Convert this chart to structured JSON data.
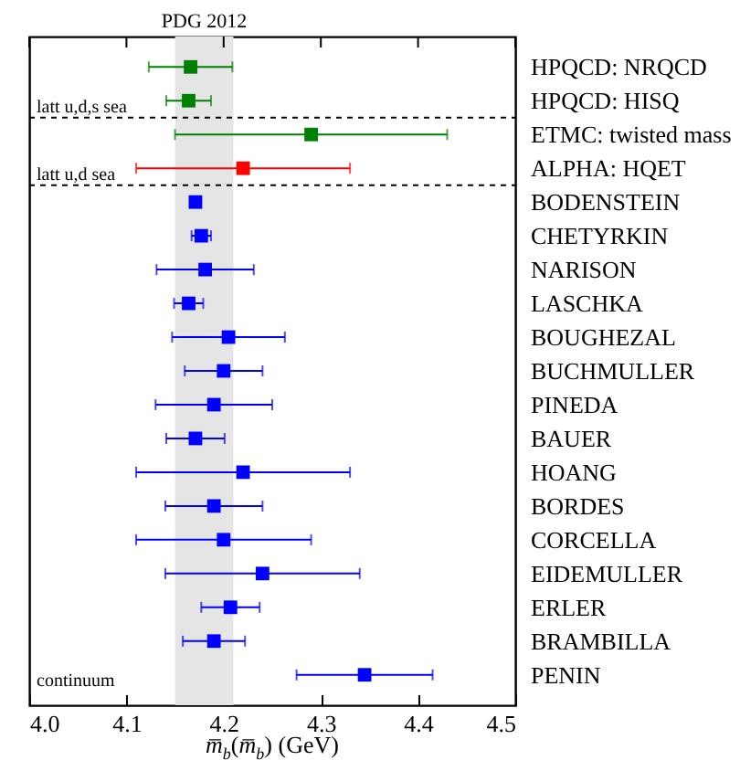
{
  "chart_data": {
    "type": "scatter",
    "orientation": "horizontal",
    "marker": "square",
    "grid": false,
    "xlabel": "m̅$_{b}$(m̅$_{b}$) (GeV)",
    "categories": [
      "HPQCD: NRQCD",
      "HPQCD: HISQ",
      "ETMC: twisted mass",
      "ALPHA: HQET",
      "BODENSTEIN",
      "CHETYRKIN",
      "NARISON",
      "LASCHKA",
      "BOUGHEZAL",
      "BUCHMULLER",
      "PINEDA",
      "BAUER",
      "HOANG",
      "BORDES",
      "CORCELLA",
      "EIDEMULLER",
      "ERLER",
      "BRAMBILLA",
      "PENIN"
    ],
    "series": [
      {
        "color": "#008000",
        "values": [
          4.166,
          4.164,
          4.29,
          null,
          null,
          null,
          null,
          null,
          null,
          null,
          null,
          null,
          null,
          null,
          null,
          null,
          null,
          null,
          null
        ],
        "errors": [
          0.043,
          0.023,
          0.14,
          null,
          null,
          null,
          null,
          null,
          null,
          null,
          null,
          null,
          null,
          null,
          null,
          null,
          null,
          null,
          null
        ]
      },
      {
        "color": "#ff0000",
        "values": [
          null,
          null,
          null,
          4.22,
          null,
          null,
          null,
          null,
          null,
          null,
          null,
          null,
          null,
          null,
          null,
          null,
          null,
          null,
          null
        ],
        "errors": [
          null,
          null,
          null,
          0.11,
          null,
          null,
          null,
          null,
          null,
          null,
          null,
          null,
          null,
          null,
          null,
          null,
          null,
          null,
          null
        ]
      },
      {
        "color": "#0000ff",
        "values": [
          null,
          null,
          null,
          null,
          4.171,
          4.177,
          4.181,
          4.164,
          4.205,
          4.2,
          4.19,
          4.171,
          4.22,
          4.19,
          4.2,
          4.24,
          4.207,
          4.19,
          4.345
        ],
        "errors": [
          null,
          null,
          null,
          null,
          0.005,
          0.01,
          0.05,
          0.015,
          0.058,
          0.04,
          0.06,
          0.03,
          0.11,
          0.05,
          0.09,
          0.1,
          0.03,
          0.032,
          0.07
        ]
      }
    ],
    "xlim": [
      4.0,
      4.5
    ],
    "xticks": [
      {
        "value": 4.0,
        "label": "4.0"
      },
      {
        "value": 4.1,
        "label": "4.1"
      },
      {
        "value": 4.2,
        "label": "4.2"
      },
      {
        "value": 4.3,
        "label": "4.3"
      },
      {
        "value": 4.4,
        "label": "4.4"
      },
      {
        "value": 4.5,
        "label": "4.5"
      }
    ],
    "bands": [
      {
        "axis": "x",
        "from": 4.15,
        "to": 4.21,
        "label": "PDG 2012",
        "color": "#e5e5e5"
      }
    ],
    "annotations": [
      "latt u,d,s sea",
      "latt u,d sea",
      "continuum"
    ]
  }
}
